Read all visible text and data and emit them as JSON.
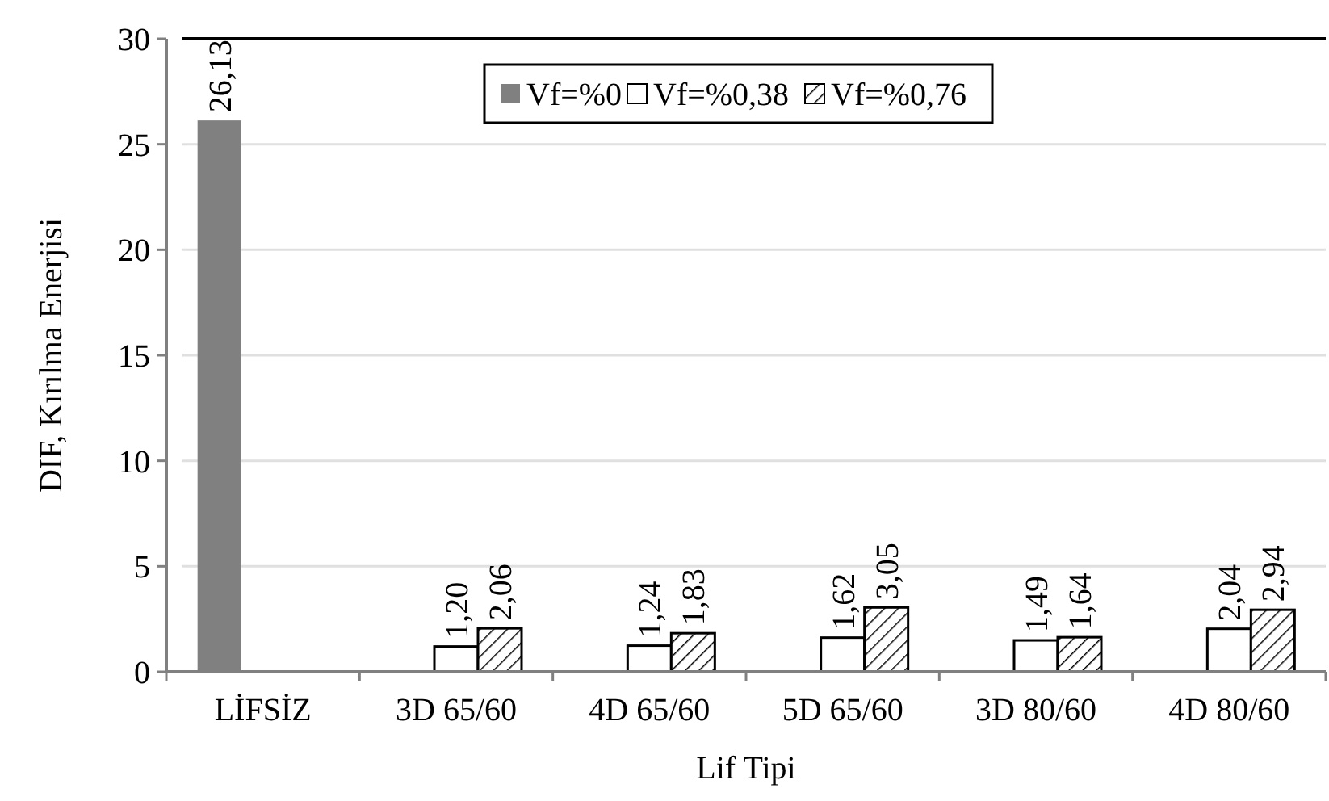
{
  "chart_data": {
    "type": "bar",
    "xlabel": "Lif Tipi",
    "ylabel": "DIF, Kırılma Enerjisi",
    "categories": [
      "LİFSİZ",
      "3D 65/60",
      "4D 65/60",
      "5D 65/60",
      "3D 80/60",
      "4D 80/60"
    ],
    "series": [
      {
        "name": "Vf=%0",
        "color": "#808080",
        "values": [
          26.13,
          null,
          null,
          null,
          null,
          null
        ],
        "value_labels": [
          "26,13",
          null,
          null,
          null,
          null,
          null
        ]
      },
      {
        "name": "Vf=%0,38",
        "color": "#ffffff",
        "values": [
          null,
          1.2,
          1.24,
          1.62,
          1.49,
          2.04
        ],
        "value_labels": [
          null,
          "1,20",
          "1,24",
          "1,62",
          "1,49",
          "2,04"
        ]
      },
      {
        "name": "Vf=%0,76",
        "color": "#000000",
        "values": [
          null,
          2.06,
          1.83,
          3.05,
          1.64,
          2.94
        ],
        "value_labels": [
          null,
          "2,06",
          "1,83",
          "3,05",
          "1,64",
          "2,94"
        ]
      }
    ],
    "ylim": [
      0,
      30
    ],
    "yticks": [
      0,
      5,
      10,
      15,
      20,
      25,
      30
    ],
    "grid": "y",
    "legend": "top"
  }
}
